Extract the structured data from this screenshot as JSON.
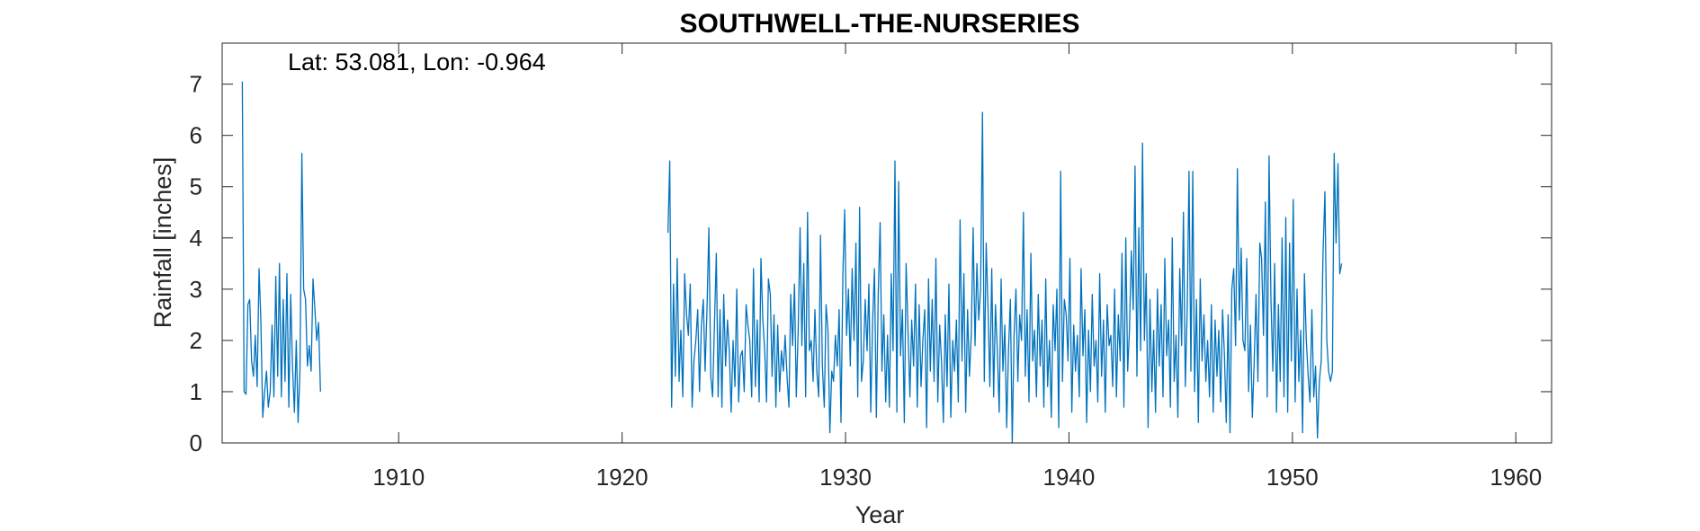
{
  "chart_data": {
    "type": "line",
    "title": "SOUTHWELL-THE-NURSERIES",
    "annotation": "Lat: 53.081, Lon: -0.964",
    "xlabel": "Year",
    "ylabel": "Rainfall [inches]",
    "xlim": [
      1902.1,
      1961.6
    ],
    "ylim": [
      0,
      7.8
    ],
    "xticks": [
      1910,
      1920,
      1930,
      1940,
      1950,
      1960
    ],
    "yticks": [
      0,
      1,
      2,
      3,
      4,
      5,
      6,
      7
    ],
    "grid": false,
    "line_color": "#0072bd",
    "series": [
      {
        "segments": [
          {
            "x_start": 1903.0,
            "step": 0.0833,
            "values": [
              7.05,
              1.0,
              0.95,
              2.7,
              2.8,
              1.6,
              1.3,
              2.1,
              1.1,
              3.4,
              2.4,
              0.5,
              1.0,
              1.4,
              0.7,
              1.0,
              2.3,
              0.9,
              3.25,
              1.3,
              3.5,
              0.9,
              2.8,
              1.2,
              3.3,
              0.7,
              2.9,
              1.5,
              0.6,
              2.0,
              0.4,
              1.4,
              5.65,
              3.0,
              2.8,
              1.5,
              1.9,
              1.4,
              3.2,
              2.6,
              2.0,
              2.35,
              1.0
            ]
          },
          {
            "x_start": 1922.05,
            "step": 0.0833,
            "values": [
              4.1,
              5.5,
              0.7,
              3.1,
              1.3,
              3.6,
              1.2,
              2.2,
              0.9,
              3.3,
              2.5,
              2.1,
              3.1,
              0.7,
              1.6,
              2.0,
              2.6,
              1.0,
              2.3,
              2.8,
              1.4,
              2.6,
              4.2,
              1.3,
              0.9,
              2.3,
              3.7,
              0.9,
              2.6,
              0.7,
              2.9,
              1.5,
              2.4,
              1.8,
              0.6,
              2.0,
              1.1,
              3.0,
              0.8,
              1.7,
              1.8,
              1.0,
              2.7,
              2.3,
              2.0,
              0.9,
              3.4,
              1.1,
              2.4,
              0.8,
              3.6,
              2.4,
              1.8,
              0.8,
              3.2,
              2.9,
              1.3,
              2.5,
              0.7,
              2.3,
              1.0,
              1.8,
              1.4,
              2.1,
              1.3,
              0.7,
              2.9,
              1.9,
              3.1,
              0.9,
              2.2,
              4.2,
              1.9,
              3.5,
              0.9,
              4.5,
              1.8,
              2.0,
              1.2,
              2.6,
              1.4,
              0.9,
              4.05,
              1.5,
              0.7,
              2.7,
              2.2,
              0.2,
              1.4,
              1.2,
              2.1,
              1.5,
              2.6,
              0.4,
              3.3,
              4.55,
              2.1,
              3.0,
              1.5,
              3.4,
              2.0,
              3.9,
              0.9,
              4.6,
              1.2,
              1.6,
              2.8,
              1.8,
              3.1,
              0.6,
              2.4,
              3.4,
              0.5,
              2.9,
              4.3,
              1.4,
              2.5,
              0.8,
              2.1,
              0.7,
              3.3,
              1.8,
              5.5,
              0.6,
              5.1,
              1.7,
              2.6,
              0.4,
              3.5,
              2.2,
              0.9,
              2.4,
              1.5,
              3.1,
              0.7,
              2.7,
              1.1,
              2.0,
              2.6,
              0.3,
              3.2,
              1.4,
              2.8,
              1.2,
              3.6,
              0.8,
              2.3,
              1.6,
              0.4,
              2.5,
              1.1,
              3.1,
              0.5,
              2.0,
              1.4,
              2.4,
              0.8,
              4.35,
              1.6,
              3.3,
              0.6,
              2.6,
              1.3,
              2.1,
              4.2,
              1.9,
              3.5,
              2.4,
              3.0,
              6.45,
              1.2,
              3.9,
              2.6,
              1.1,
              3.4,
              0.9,
              2.7,
              1.8,
              0.6,
              3.2,
              1.4,
              2.3,
              0.3,
              1.8,
              2.8,
              0.0,
              2.1,
              3.0,
              1.2,
              2.5,
              2.0,
              4.5,
              1.3,
              2.6,
              0.8,
              3.7,
              1.6,
              2.2,
              0.9,
              2.9,
              1.5,
              2.4,
              0.7,
              3.2,
              1.1,
              2.0,
              0.5,
              2.7,
              1.8,
              3.0,
              0.3,
              5.3,
              1.2,
              2.8,
              2.5,
              1.6,
              3.6,
              0.6,
              2.3,
              1.4,
              2.1,
              0.9,
              3.4,
              1.7,
              2.6,
              0.4,
              2.2,
              1.0,
              2.9,
              1.5,
              2.0,
              0.8,
              3.3,
              1.3,
              2.4,
              0.6,
              2.7,
              1.9,
              2.1,
              1.1,
              3.0,
              0.9,
              2.5,
              1.6,
              3.7,
              0.7,
              4.0,
              1.4,
              2.2,
              3.75,
              2.6,
              5.4,
              1.3,
              4.2,
              1.8,
              5.85,
              2.0,
              3.3,
              0.3,
              2.8,
              1.0,
              2.2,
              0.6,
              3.0,
              1.5,
              2.7,
              0.9,
              3.6,
              1.7,
              2.4,
              0.7,
              4.0,
              1.2,
              2.1,
              0.5,
              3.4,
              1.9,
              4.5,
              1.1,
              2.6,
              5.3,
              1.4,
              5.3,
              1.0,
              2.8,
              0.4,
              3.2,
              1.6,
              2.5,
              1.2,
              2.0,
              0.9,
              2.7,
              0.6,
              2.4,
              1.3,
              2.2,
              0.8,
              2.6,
              1.7,
              0.4,
              2.5,
              0.2,
              3.0,
              3.4,
              1.9,
              5.35,
              2.4,
              3.8,
              2.0,
              1.8,
              3.6,
              1.0,
              2.3,
              0.5,
              1.6,
              2.9,
              1.2,
              3.9,
              3.6,
              2.1,
              4.7,
              0.9,
              5.6,
              2.8,
              1.4,
              3.5,
              0.6,
              2.7,
              1.2,
              4.0,
              0.9,
              4.4,
              0.6,
              3.9,
              1.6,
              4.75,
              0.8,
              3.0,
              1.2,
              2.2,
              0.2,
              3.3,
              2.0,
              1.3,
              0.8,
              2.6,
              0.9,
              1.5,
              0.1,
              1.2,
              1.6,
              3.7,
              4.9,
              2.0,
              1.4,
              1.2,
              1.4,
              5.65,
              3.9,
              5.45,
              3.3,
              3.5
            ]
          }
        ]
      }
    ]
  }
}
